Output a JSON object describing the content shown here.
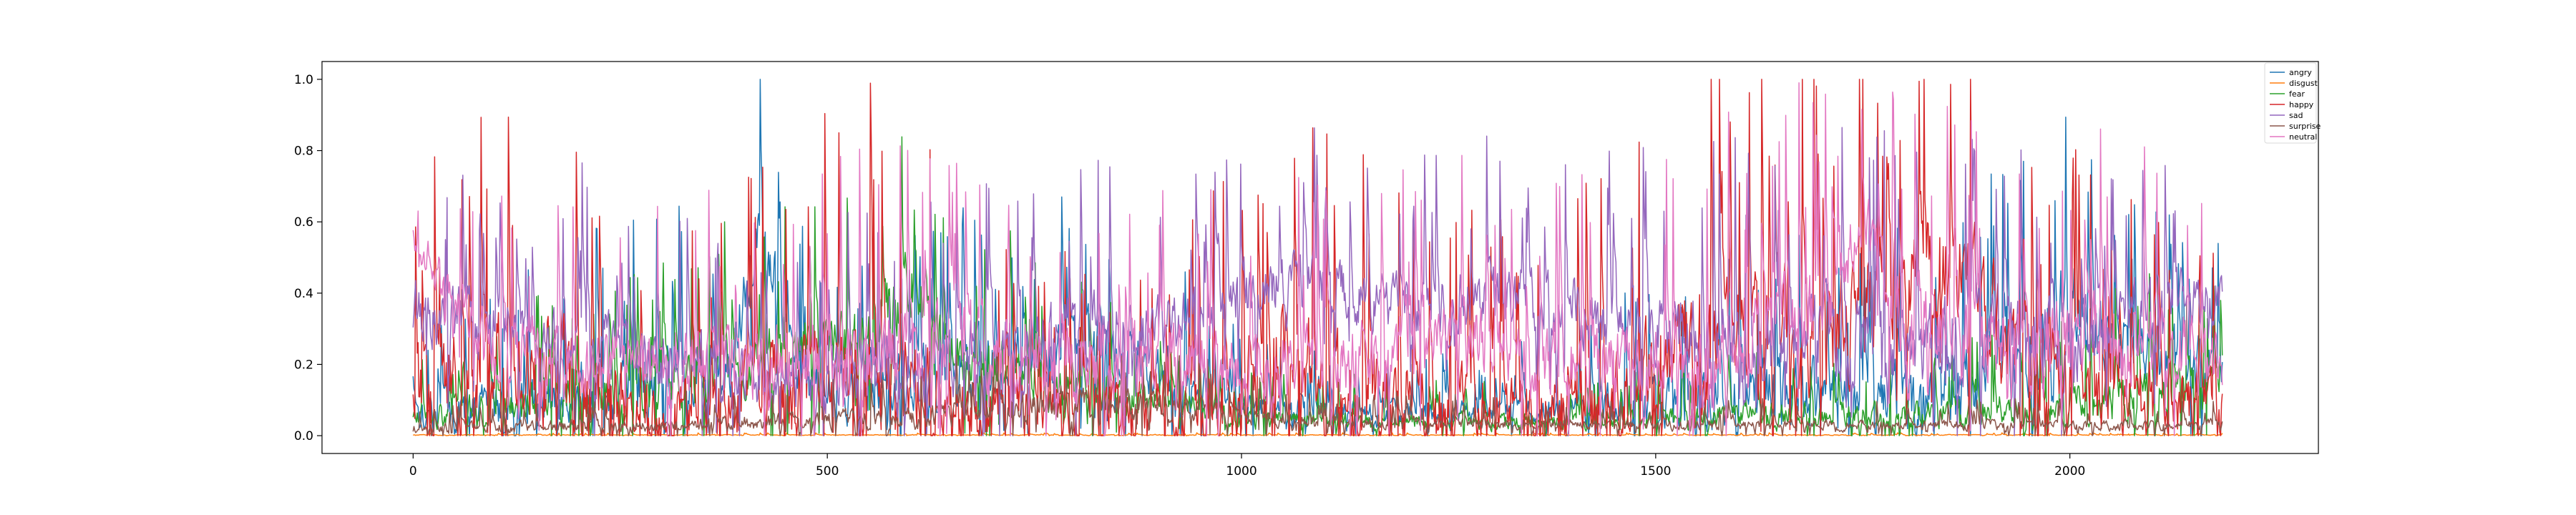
{
  "chart_data": {
    "type": "line",
    "title": "",
    "xlabel": "",
    "ylabel": "",
    "xlim": [
      -110,
      2300
    ],
    "ylim": [
      -0.05,
      1.05
    ],
    "x_ticks": [
      0,
      500,
      1000,
      1500,
      2000
    ],
    "x_tick_labels": [
      "0",
      "500",
      "1000",
      "1500",
      "2000"
    ],
    "y_ticks": [
      0.0,
      0.2,
      0.4,
      0.6,
      0.8,
      1.0
    ],
    "y_tick_labels": [
      "0.0",
      "0.2",
      "0.4",
      "0.6",
      "0.8",
      "1.0"
    ],
    "grid": false,
    "legend_position": "top-right",
    "n_points": 2185,
    "series": [
      {
        "name": "angry",
        "color": "#1f77b4",
        "profile": {
          "x": [
            0,
            100,
            200,
            300,
            380,
            410,
            430,
            460,
            560,
            700,
            850,
            1000,
            1150,
            1300,
            1450,
            1550,
            1650,
            1750,
            1850,
            1950,
            2000,
            2050,
            2185
          ],
          "base": [
            0.05,
            0.08,
            0.12,
            0.15,
            0.18,
            0.55,
            0.5,
            0.15,
            0.12,
            0.2,
            0.25,
            0.08,
            0.06,
            0.06,
            0.08,
            0.1,
            0.12,
            0.1,
            0.12,
            0.22,
            0.35,
            0.25,
            0.18
          ],
          "amp": [
            0.15,
            0.25,
            0.3,
            0.35,
            0.3,
            0.35,
            0.35,
            0.3,
            0.3,
            0.35,
            0.3,
            0.15,
            0.12,
            0.12,
            0.2,
            0.3,
            0.35,
            0.3,
            0.35,
            0.45,
            0.5,
            0.4,
            0.25
          ]
        }
      },
      {
        "name": "disgust",
        "color": "#ff7f0e",
        "profile": {
          "x": [
            0,
            2185
          ],
          "base": [
            0.002,
            0.002
          ],
          "amp": [
            0.004,
            0.004
          ]
        }
      },
      {
        "name": "fear",
        "color": "#2ca02c",
        "profile": {
          "x": [
            0,
            150,
            300,
            400,
            480,
            560,
            600,
            640,
            760,
            900,
            1000,
            1200,
            1400,
            1600,
            1800,
            1950,
            2100,
            2185
          ],
          "base": [
            0.05,
            0.1,
            0.12,
            0.2,
            0.25,
            0.3,
            0.45,
            0.25,
            0.15,
            0.1,
            0.05,
            0.04,
            0.04,
            0.06,
            0.06,
            0.08,
            0.12,
            0.15
          ],
          "amp": [
            0.1,
            0.2,
            0.25,
            0.3,
            0.3,
            0.3,
            0.35,
            0.3,
            0.25,
            0.15,
            0.1,
            0.08,
            0.08,
            0.12,
            0.12,
            0.15,
            0.25,
            0.2
          ]
        }
      },
      {
        "name": "happy",
        "color": "#d62728",
        "profile": {
          "x": [
            0,
            100,
            200,
            300,
            450,
            550,
            700,
            850,
            1000,
            1050,
            1100,
            1250,
            1350,
            1450,
            1550,
            1650,
            1720,
            1800,
            1860,
            1950,
            2050,
            2185
          ],
          "base": [
            0.1,
            0.2,
            0.15,
            0.05,
            0.12,
            0.15,
            0.08,
            0.06,
            0.1,
            0.25,
            0.12,
            0.08,
            0.06,
            0.1,
            0.25,
            0.3,
            0.25,
            0.45,
            0.5,
            0.2,
            0.1,
            0.08
          ],
          "amp": [
            0.4,
            0.6,
            0.55,
            0.3,
            0.5,
            0.6,
            0.35,
            0.3,
            0.45,
            0.6,
            0.5,
            0.4,
            0.35,
            0.5,
            0.6,
            0.55,
            0.55,
            0.55,
            0.5,
            0.5,
            0.4,
            0.3
          ]
        }
      },
      {
        "name": "sad",
        "color": "#9467bd",
        "profile": {
          "x": [
            0,
            100,
            200,
            350,
            500,
            600,
            750,
            900,
            1000,
            1100,
            1200,
            1300,
            1400,
            1500,
            1600,
            1700,
            1800,
            1900,
            2000,
            2100,
            2185
          ],
          "base": [
            0.35,
            0.3,
            0.25,
            0.2,
            0.15,
            0.18,
            0.28,
            0.3,
            0.4,
            0.45,
            0.35,
            0.4,
            0.35,
            0.3,
            0.25,
            0.3,
            0.25,
            0.3,
            0.25,
            0.35,
            0.4
          ],
          "amp": [
            0.3,
            0.3,
            0.35,
            0.3,
            0.3,
            0.35,
            0.35,
            0.3,
            0.3,
            0.3,
            0.3,
            0.3,
            0.3,
            0.35,
            0.4,
            0.4,
            0.4,
            0.4,
            0.4,
            0.3,
            0.25
          ]
        }
      },
      {
        "name": "surprise",
        "color": "#8c564b",
        "profile": {
          "x": [
            0,
            300,
            600,
            800,
            900,
            1100,
            1400,
            1700,
            2000,
            2185
          ],
          "base": [
            0.02,
            0.03,
            0.05,
            0.1,
            0.08,
            0.04,
            0.03,
            0.03,
            0.03,
            0.03
          ],
          "amp": [
            0.05,
            0.06,
            0.1,
            0.15,
            0.12,
            0.06,
            0.05,
            0.05,
            0.05,
            0.05
          ]
        }
      },
      {
        "name": "neutral",
        "color": "#e377c2",
        "profile": {
          "x": [
            0,
            100,
            250,
            400,
            550,
            700,
            850,
            1000,
            1100,
            1250,
            1350,
            1500,
            1600,
            1700,
            1750,
            1800,
            1900,
            2000,
            2100,
            2185
          ],
          "base": [
            0.55,
            0.25,
            0.2,
            0.2,
            0.25,
            0.25,
            0.2,
            0.2,
            0.2,
            0.3,
            0.2,
            0.2,
            0.25,
            0.35,
            0.6,
            0.3,
            0.25,
            0.25,
            0.25,
            0.2
          ],
          "amp": [
            0.15,
            0.3,
            0.3,
            0.35,
            0.4,
            0.4,
            0.35,
            0.35,
            0.35,
            0.35,
            0.35,
            0.4,
            0.45,
            0.45,
            0.3,
            0.45,
            0.45,
            0.45,
            0.4,
            0.35
          ]
        }
      }
    ]
  }
}
